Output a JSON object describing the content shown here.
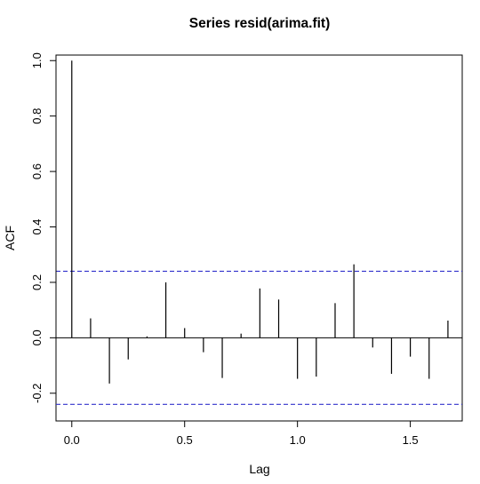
{
  "chart_data": {
    "type": "bar",
    "subtype": "acf-spikes",
    "title": "Series  resid(arima.fit)",
    "xlabel": "Lag",
    "ylabel": "ACF",
    "xlim": [
      -0.07,
      1.73
    ],
    "ylim": [
      -0.3,
      1.02
    ],
    "xticks": [
      0.0,
      0.5,
      1.0,
      1.5
    ],
    "yticks": [
      -0.2,
      0.0,
      0.2,
      0.4,
      0.6,
      0.8,
      1.0
    ],
    "xtick_labels": [
      "0.0",
      "0.5",
      "1.0",
      "1.5"
    ],
    "ytick_labels": [
      "-0.2",
      "0.0",
      "0.2",
      "0.4",
      "0.6",
      "0.8",
      "1.0"
    ],
    "lags": [
      0.0,
      0.0833,
      0.1667,
      0.25,
      0.3333,
      0.4167,
      0.5,
      0.5833,
      0.6667,
      0.75,
      0.8333,
      0.9167,
      1.0,
      1.0833,
      1.1667,
      1.25,
      1.3333,
      1.4167,
      1.5,
      1.5833,
      1.6667
    ],
    "acf": [
      1.0,
      0.07,
      -0.165,
      -0.078,
      0.005,
      0.2,
      0.035,
      -0.052,
      -0.145,
      0.015,
      0.178,
      0.138,
      -0.148,
      -0.14,
      0.125,
      0.265,
      -0.035,
      -0.13,
      -0.068,
      -0.148,
      0.062
    ],
    "confidence_bounds": [
      0.24,
      -0.24
    ],
    "confidence_line_color": "#3333cc",
    "spike_color": "#000000",
    "grid": false,
    "zero_line": true
  }
}
